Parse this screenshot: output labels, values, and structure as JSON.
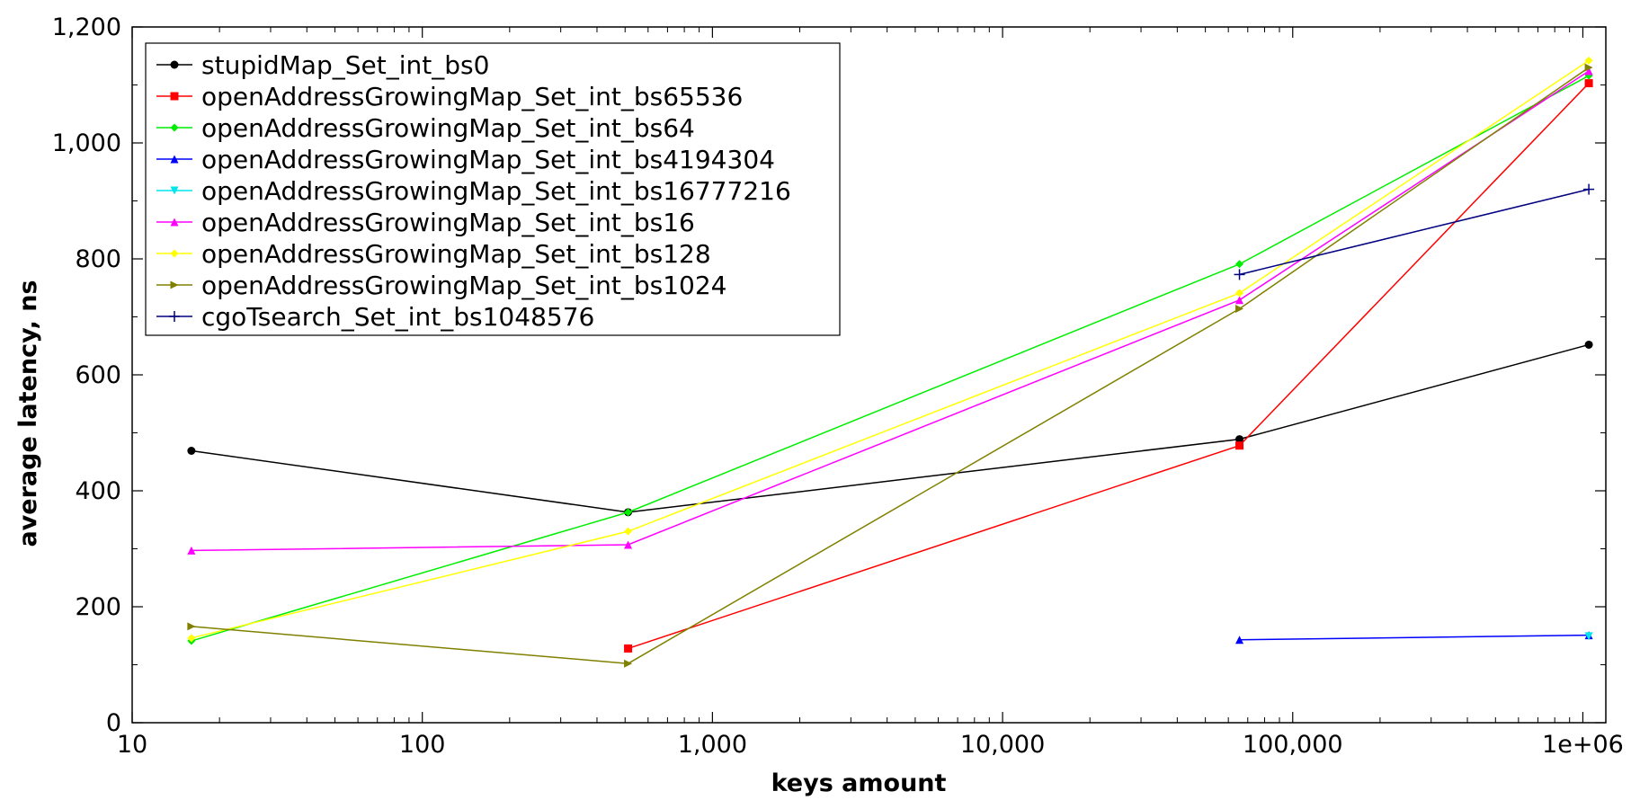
{
  "chart_data": {
    "type": "line",
    "xlabel": "keys amount",
    "ylabel": "average latency, ns",
    "x_scale": "log",
    "xlim": [
      10,
      1200000
    ],
    "ylim": [
      0,
      1200
    ],
    "x_ticks": [
      10,
      100,
      1000,
      10000,
      100000,
      1000000
    ],
    "x_tick_labels": [
      "10",
      "100",
      "1,000",
      "10,000",
      "100,000",
      "1e+06"
    ],
    "y_ticks": [
      0,
      200,
      400,
      600,
      800,
      1000,
      1200
    ],
    "y_tick_labels": [
      "0",
      "200",
      "400",
      "600",
      "800",
      "1,000",
      "1,200"
    ],
    "grid": false,
    "legend_position": "top-left",
    "series": [
      {
        "name": "stupidMap_Set_int_bs0",
        "color": "#000000",
        "marker": "circle",
        "points": [
          [
            16,
            469
          ],
          [
            512,
            363
          ],
          [
            65536,
            489
          ],
          [
            1048576,
            652
          ]
        ]
      },
      {
        "name": "openAddressGrowingMap_Set_int_bs65536",
        "color": "#ff0000",
        "marker": "square",
        "points": [
          [
            512,
            128
          ],
          [
            65536,
            478
          ],
          [
            1048576,
            1103
          ]
        ]
      },
      {
        "name": "openAddressGrowingMap_Set_int_bs64",
        "color": "#00ee00",
        "marker": "diamond",
        "points": [
          [
            16,
            141
          ],
          [
            512,
            363
          ],
          [
            65536,
            791
          ],
          [
            1048576,
            1116
          ]
        ]
      },
      {
        "name": "openAddressGrowingMap_Set_int_bs4194304",
        "color": "#0000ff",
        "marker": "triangle-up",
        "points": [
          [
            65536,
            143
          ],
          [
            1048576,
            151
          ]
        ]
      },
      {
        "name": "openAddressGrowingMap_Set_int_bs16777216",
        "color": "#00e5ee",
        "marker": "triangle-down",
        "points": [
          [
            1048576,
            149
          ]
        ]
      },
      {
        "name": "openAddressGrowingMap_Set_int_bs16",
        "color": "#ff00ff",
        "marker": "triangle-up",
        "points": [
          [
            16,
            297
          ],
          [
            512,
            307
          ],
          [
            65536,
            729
          ],
          [
            1048576,
            1124
          ]
        ]
      },
      {
        "name": "openAddressGrowingMap_Set_int_bs128",
        "color": "#ffff00",
        "marker": "diamond",
        "points": [
          [
            16,
            146
          ],
          [
            512,
            330
          ],
          [
            65536,
            741
          ],
          [
            1048576,
            1142
          ]
        ]
      },
      {
        "name": "openAddressGrowingMap_Set_int_bs1024",
        "color": "#808000",
        "marker": "triangle-right",
        "points": [
          [
            16,
            166
          ],
          [
            512,
            102
          ],
          [
            65536,
            714
          ],
          [
            1048576,
            1130
          ]
        ]
      },
      {
        "name": "cgoTsearch_Set_int_bs1048576",
        "color": "#000080",
        "marker": "plus",
        "points": [
          [
            65536,
            773
          ],
          [
            1048576,
            920
          ]
        ]
      }
    ]
  }
}
